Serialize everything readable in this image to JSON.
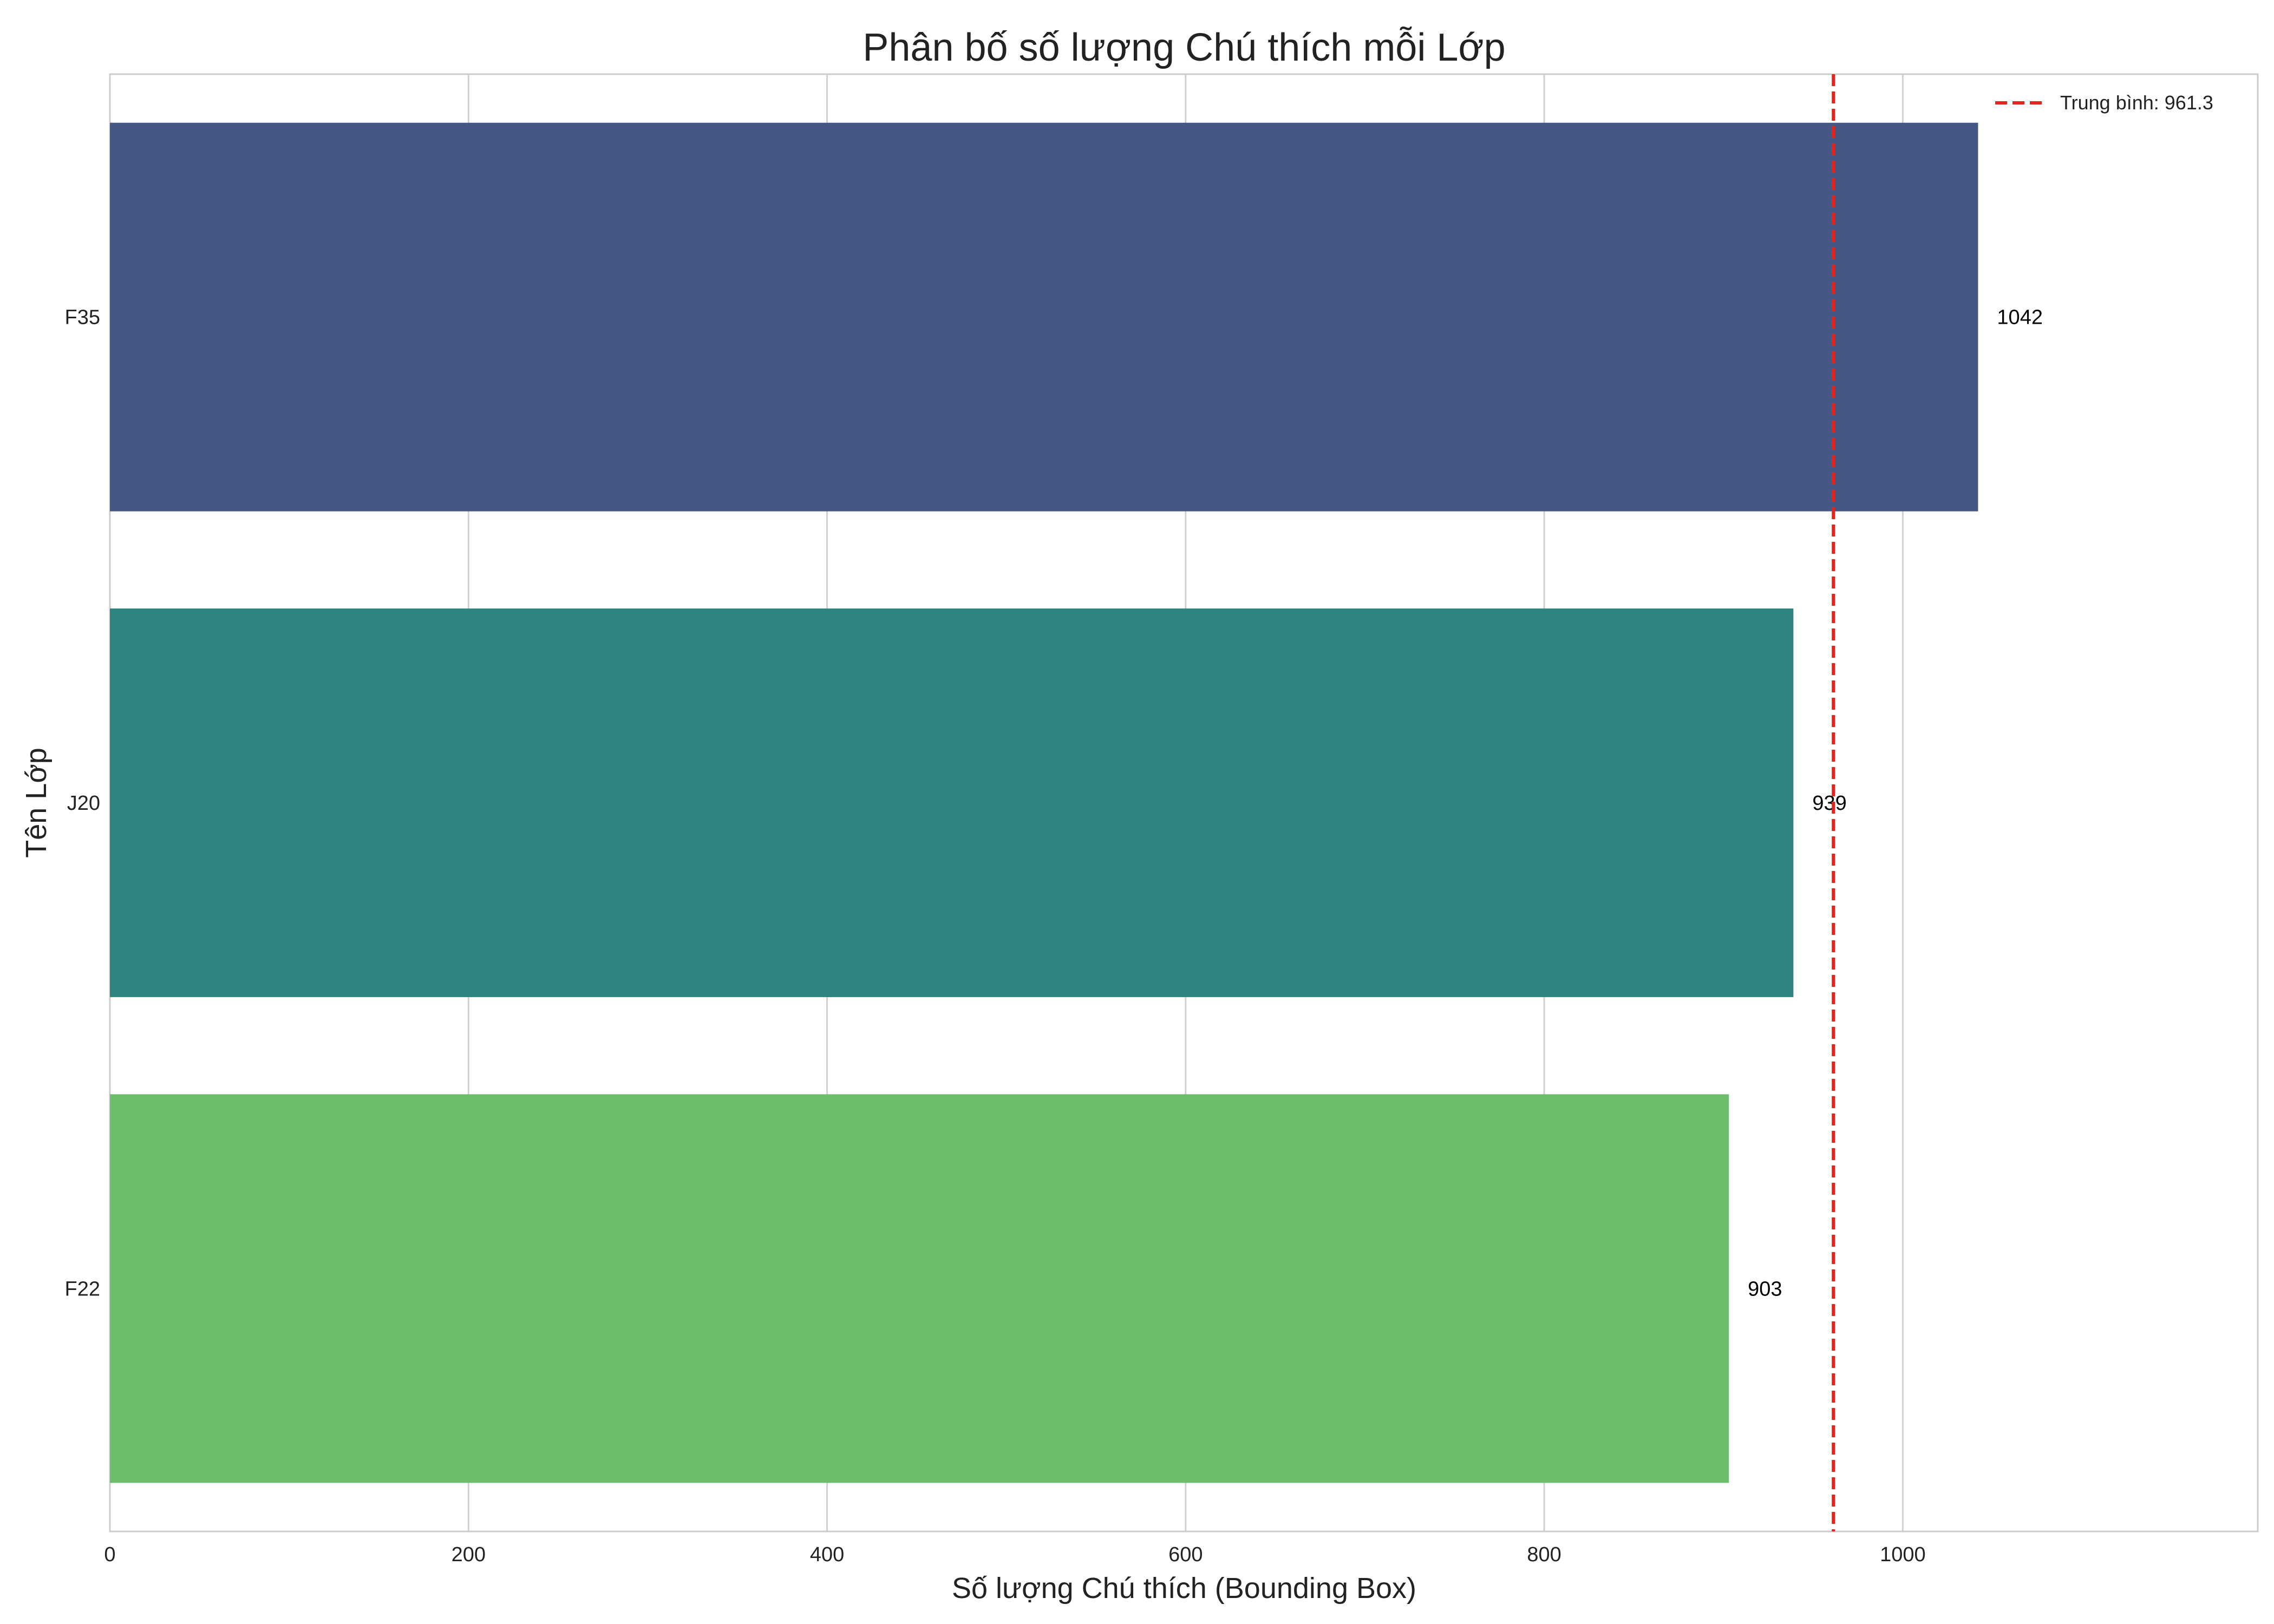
{
  "chart_data": {
    "type": "bar",
    "orientation": "horizontal",
    "title": "Phân bố số lượng Chú thích mỗi Lớp",
    "xlabel": "Số lượng Chú thích (Bounding Box)",
    "ylabel": "Tên Lớp",
    "categories": [
      "F35",
      "J20",
      "F22"
    ],
    "values": [
      1042,
      939,
      903
    ],
    "colors": [
      "#455883",
      "#2e847f",
      "#6dbd6d"
    ],
    "xlim": [
      0,
      1198
    ],
    "xticks": [
      0,
      200,
      400,
      600,
      800,
      1000
    ],
    "grid": true,
    "mean_line": {
      "value": 961.3,
      "color": "#e8221c",
      "style": "dashed"
    },
    "legend": {
      "placement": "top-right",
      "entries": [
        "Trung bình: 961.3"
      ]
    }
  }
}
